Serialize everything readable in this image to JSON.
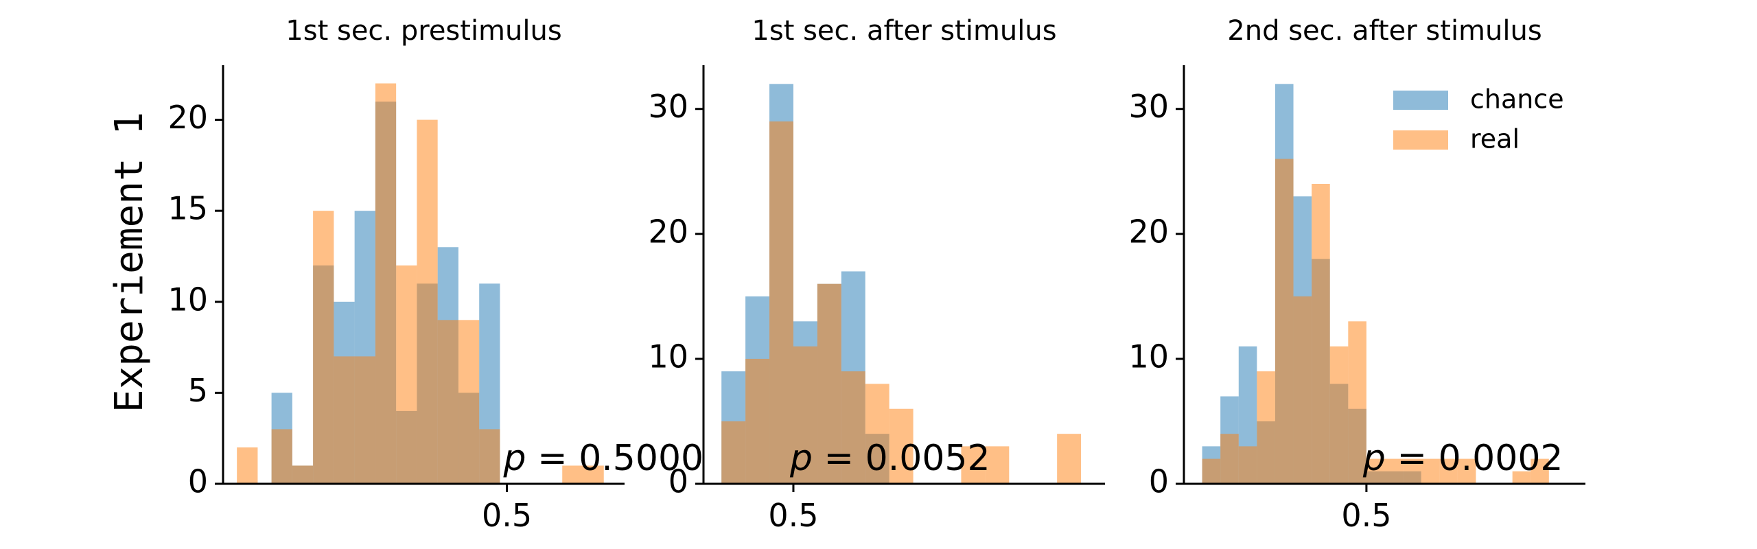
{
  "figure": {
    "row_label": "Experiement 1"
  },
  "colors": {
    "chance": "#1f77b4",
    "real": "#ff7f0e",
    "axis": "#000000",
    "text": "#000000",
    "bar_alpha": 0.5
  },
  "legend": {
    "placement": "top-right",
    "entries": [
      "chance",
      "real"
    ]
  },
  "chart_data": [
    {
      "type": "bar",
      "title": "1st sec. prestimulus",
      "xlabel": "",
      "ylabel": "Experiement 1",
      "xlim": [
        0.295,
        0.585
      ],
      "ylim": [
        0,
        23
      ],
      "x_ticks": [
        0.5
      ],
      "x_tick_labels": [
        "0.5"
      ],
      "y_ticks": [
        0,
        5,
        10,
        15,
        20
      ],
      "y_tick_labels": [
        "0",
        "5",
        "10",
        "15",
        "20"
      ],
      "grid": false,
      "annotation": {
        "prefix": "p = ",
        "value": "0.5000"
      },
      "series": [
        {
          "name": "chance",
          "bins": [
            [
              0.33,
              0.345
            ],
            [
              0.345,
              0.36
            ],
            [
              0.36,
              0.375
            ],
            [
              0.375,
              0.39
            ],
            [
              0.39,
              0.405
            ],
            [
              0.405,
              0.42
            ],
            [
              0.42,
              0.435
            ],
            [
              0.435,
              0.45
            ],
            [
              0.45,
              0.465
            ],
            [
              0.465,
              0.48
            ],
            [
              0.48,
              0.495
            ],
            [
              0.495,
              0.51
            ]
          ],
          "values": [
            5,
            1,
            12,
            10,
            15,
            21,
            4,
            11,
            13,
            5,
            11,
            0
          ]
        },
        {
          "name": "real",
          "bins": [
            [
              0.305,
              0.32
            ],
            [
              0.33,
              0.345
            ],
            [
              0.345,
              0.36
            ],
            [
              0.36,
              0.375
            ],
            [
              0.375,
              0.39
            ],
            [
              0.39,
              0.405
            ],
            [
              0.405,
              0.42
            ],
            [
              0.42,
              0.435
            ],
            [
              0.435,
              0.45
            ],
            [
              0.45,
              0.465
            ],
            [
              0.465,
              0.48
            ],
            [
              0.48,
              0.495
            ],
            [
              0.495,
              0.51
            ],
            [
              0.51,
              0.525
            ],
            [
              0.525,
              0.54
            ],
            [
              0.54,
              0.555
            ],
            [
              0.555,
              0.57
            ]
          ],
          "values": [
            2,
            3,
            1,
            15,
            7,
            7,
            22,
            12,
            20,
            9,
            9,
            3,
            0,
            0,
            0,
            1,
            1
          ]
        }
      ]
    },
    {
      "type": "bar",
      "title": "1st sec. after stimulus",
      "xlabel": "",
      "ylabel": "",
      "xlim": [
        0.425,
        0.76
      ],
      "ylim": [
        0,
        33.5
      ],
      "x_ticks": [
        0.5
      ],
      "x_tick_labels": [
        "0.5"
      ],
      "y_ticks": [
        0,
        10,
        20,
        30
      ],
      "y_tick_labels": [
        "0",
        "10",
        "20",
        "30"
      ],
      "grid": false,
      "annotation": {
        "prefix": "p = ",
        "value": "0.0052"
      },
      "series": [
        {
          "name": "chance",
          "bins": [
            [
              0.44,
              0.46
            ],
            [
              0.46,
              0.48
            ],
            [
              0.48,
              0.5
            ],
            [
              0.5,
              0.52
            ],
            [
              0.52,
              0.54
            ],
            [
              0.54,
              0.56
            ],
            [
              0.56,
              0.58
            ]
          ],
          "values": [
            9,
            15,
            32,
            13,
            16,
            17,
            4
          ]
        },
        {
          "name": "real",
          "bins": [
            [
              0.44,
              0.46
            ],
            [
              0.46,
              0.48
            ],
            [
              0.48,
              0.5
            ],
            [
              0.5,
              0.52
            ],
            [
              0.52,
              0.54
            ],
            [
              0.54,
              0.56
            ],
            [
              0.56,
              0.58
            ],
            [
              0.58,
              0.6
            ],
            [
              0.6,
              0.62
            ],
            [
              0.62,
              0.64
            ],
            [
              0.64,
              0.66
            ],
            [
              0.66,
              0.68
            ],
            [
              0.68,
              0.7
            ],
            [
              0.7,
              0.72
            ],
            [
              0.72,
              0.74
            ]
          ],
          "values": [
            5,
            10,
            29,
            11,
            16,
            9,
            8,
            6,
            0,
            0,
            3,
            3,
            0,
            0,
            4
          ]
        }
      ]
    },
    {
      "type": "bar",
      "title": "2nd sec. after stimulus",
      "xlabel": "",
      "ylabel": "",
      "xlim": [
        0.4,
        0.62
      ],
      "ylim": [
        0,
        33.5
      ],
      "x_ticks": [
        0.5
      ],
      "x_tick_labels": [
        "0.5"
      ],
      "y_ticks": [
        0,
        10,
        20,
        30
      ],
      "y_tick_labels": [
        "0",
        "10",
        "20",
        "30"
      ],
      "grid": false,
      "annotation": {
        "prefix": "p = ",
        "value": "0.0002"
      },
      "series": [
        {
          "name": "chance",
          "bins": [
            [
              0.41,
              0.42
            ],
            [
              0.42,
              0.43
            ],
            [
              0.43,
              0.44
            ],
            [
              0.44,
              0.45
            ],
            [
              0.45,
              0.46
            ],
            [
              0.46,
              0.47
            ],
            [
              0.47,
              0.48
            ],
            [
              0.48,
              0.49
            ],
            [
              0.49,
              0.5
            ],
            [
              0.5,
              0.51
            ],
            [
              0.51,
              0.52
            ],
            [
              0.52,
              0.53
            ],
            [
              0.53,
              0.54
            ]
          ],
          "values": [
            3,
            7,
            11,
            5,
            32,
            23,
            18,
            8,
            6,
            1,
            1,
            1,
            0
          ]
        },
        {
          "name": "real",
          "bins": [
            [
              0.41,
              0.42
            ],
            [
              0.42,
              0.43
            ],
            [
              0.43,
              0.44
            ],
            [
              0.44,
              0.45
            ],
            [
              0.45,
              0.46
            ],
            [
              0.46,
              0.47
            ],
            [
              0.47,
              0.48
            ],
            [
              0.48,
              0.49
            ],
            [
              0.49,
              0.5
            ],
            [
              0.5,
              0.51
            ],
            [
              0.51,
              0.52
            ],
            [
              0.52,
              0.53
            ],
            [
              0.53,
              0.54
            ],
            [
              0.54,
              0.55
            ],
            [
              0.55,
              0.56
            ],
            [
              0.56,
              0.57
            ],
            [
              0.57,
              0.58
            ],
            [
              0.58,
              0.59
            ],
            [
              0.59,
              0.6
            ]
          ],
          "values": [
            2,
            4,
            3,
            9,
            26,
            15,
            24,
            11,
            13,
            2,
            2,
            2,
            2,
            2,
            2,
            0,
            0,
            1,
            2
          ]
        }
      ]
    }
  ]
}
